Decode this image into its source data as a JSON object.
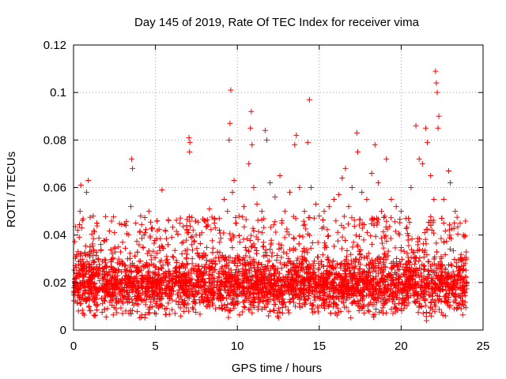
{
  "chart_data": {
    "type": "scatter",
    "title": "Day 145 of 2019, Rate Of TEC Index for receiver vima",
    "xlabel": "GPS time / hours",
    "ylabel": "ROTI / TECUs",
    "xlim": [
      0,
      25
    ],
    "ylim": [
      0,
      0.12
    ],
    "xticks": [
      0,
      5,
      10,
      15,
      20,
      25
    ],
    "yticks": [
      0,
      0.02,
      0.04,
      0.06,
      0.08,
      0.1,
      0.12
    ],
    "xtick_labels": [
      "0",
      "5",
      "10",
      "15",
      "20",
      "25"
    ],
    "ytick_labels": [
      "0",
      "0.02",
      "0.04",
      "0.06",
      "0.08",
      "0.1",
      "0.12"
    ],
    "grid": true,
    "marker": "+",
    "color": "#ff0000",
    "series": [
      {
        "name": "ROTI",
        "note": "dense point cloud, x from 0 to 24 hours; representative points",
        "points": [
          [
            0.1,
            0.018
          ],
          [
            0.15,
            0.031
          ],
          [
            0.2,
            0.024
          ],
          [
            0.25,
            0.042
          ],
          [
            0.3,
            0.016
          ],
          [
            0.35,
            0.039
          ],
          [
            0.4,
            0.05
          ],
          [
            0.45,
            0.061
          ],
          [
            0.5,
            0.043
          ],
          [
            0.55,
            0.02
          ],
          [
            0.8,
            0.058
          ],
          [
            0.9,
            0.063
          ],
          [
            1.0,
            0.035
          ],
          [
            1.2,
            0.048
          ],
          [
            1.5,
            0.03
          ],
          [
            2.0,
            0.038
          ],
          [
            2.5,
            0.041
          ],
          [
            3.0,
            0.037
          ],
          [
            3.2,
            0.044
          ],
          [
            3.5,
            0.052
          ],
          [
            3.55,
            0.072
          ],
          [
            3.6,
            0.068
          ],
          [
            3.8,
            0.045
          ],
          [
            4.1,
            0.048
          ],
          [
            4.3,
            0.04
          ],
          [
            4.6,
            0.05
          ],
          [
            4.8,
            0.043
          ],
          [
            5.1,
            0.046
          ],
          [
            5.4,
            0.059
          ],
          [
            5.6,
            0.042
          ],
          [
            6.0,
            0.039
          ],
          [
            6.5,
            0.045
          ],
          [
            6.9,
            0.044
          ],
          [
            7.05,
            0.081
          ],
          [
            7.1,
            0.079
          ],
          [
            7.08,
            0.075
          ],
          [
            7.3,
            0.042
          ],
          [
            7.7,
            0.04
          ],
          [
            8.0,
            0.046
          ],
          [
            8.3,
            0.051
          ],
          [
            8.6,
            0.045
          ],
          [
            8.9,
            0.047
          ],
          [
            9.2,
            0.055
          ],
          [
            9.4,
            0.05
          ],
          [
            9.5,
            0.08
          ],
          [
            9.55,
            0.087
          ],
          [
            9.6,
            0.101
          ],
          [
            9.7,
            0.058
          ],
          [
            9.8,
            0.063
          ],
          [
            9.9,
            0.045
          ],
          [
            10.1,
            0.048
          ],
          [
            10.4,
            0.052
          ],
          [
            10.7,
            0.07
          ],
          [
            10.8,
            0.085
          ],
          [
            10.85,
            0.092
          ],
          [
            10.9,
            0.078
          ],
          [
            11.0,
            0.06
          ],
          [
            11.2,
            0.053
          ],
          [
            11.5,
            0.05
          ],
          [
            11.7,
            0.084
          ],
          [
            11.8,
            0.08
          ],
          [
            12.0,
            0.062
          ],
          [
            12.3,
            0.056
          ],
          [
            12.6,
            0.065
          ],
          [
            12.9,
            0.05
          ],
          [
            13.2,
            0.058
          ],
          [
            13.5,
            0.078
          ],
          [
            13.6,
            0.082
          ],
          [
            13.8,
            0.06
          ],
          [
            14.1,
            0.05
          ],
          [
            14.3,
            0.079
          ],
          [
            14.4,
            0.097
          ],
          [
            14.5,
            0.06
          ],
          [
            14.8,
            0.053
          ],
          [
            15.0,
            0.048
          ],
          [
            15.3,
            0.05
          ],
          [
            15.6,
            0.052
          ],
          [
            15.9,
            0.055
          ],
          [
            16.2,
            0.057
          ],
          [
            16.4,
            0.064
          ],
          [
            16.6,
            0.068
          ],
          [
            16.8,
            0.052
          ],
          [
            17.0,
            0.06
          ],
          [
            17.3,
            0.083
          ],
          [
            17.35,
            0.075
          ],
          [
            17.6,
            0.058
          ],
          [
            17.9,
            0.055
          ],
          [
            18.2,
            0.066
          ],
          [
            18.4,
            0.078
          ],
          [
            18.6,
            0.062
          ],
          [
            18.8,
            0.05
          ],
          [
            19.1,
            0.072
          ],
          [
            19.4,
            0.055
          ],
          [
            19.7,
            0.052
          ],
          [
            20.0,
            0.05
          ],
          [
            20.3,
            0.047
          ],
          [
            20.6,
            0.06
          ],
          [
            20.9,
            0.086
          ],
          [
            21.1,
            0.072
          ],
          [
            21.3,
            0.07
          ],
          [
            21.5,
            0.085
          ],
          [
            21.6,
            0.079
          ],
          [
            21.8,
            0.065
          ],
          [
            22.0,
            0.055
          ],
          [
            22.1,
            0.109
          ],
          [
            22.15,
            0.104
          ],
          [
            22.2,
            0.1
          ],
          [
            22.25,
            0.085
          ],
          [
            22.3,
            0.09
          ],
          [
            22.6,
            0.055
          ],
          [
            22.9,
            0.067
          ],
          [
            23.0,
            0.062
          ],
          [
            23.3,
            0.05
          ],
          [
            23.6,
            0.045
          ],
          [
            23.8,
            0.04
          ],
          [
            23.9,
            0.028
          ],
          [
            24.0,
            0.02
          ],
          [
            21.55,
            0.004
          ],
          [
            0.3,
            0.008
          ],
          [
            1.3,
            0.006
          ],
          [
            6.2,
            0.007
          ],
          [
            11.9,
            0.006
          ],
          [
            19.5,
            0.007
          ],
          [
            22.7,
            0.006
          ]
        ]
      }
    ]
  }
}
